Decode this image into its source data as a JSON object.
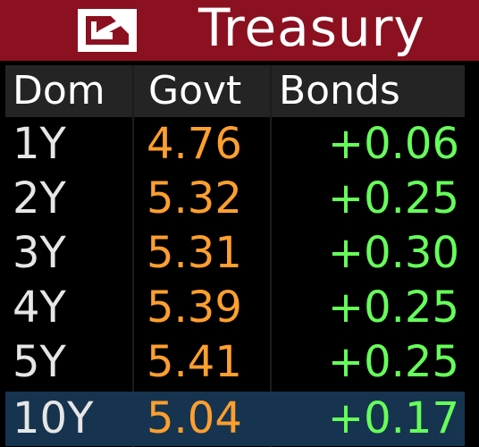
{
  "window": {
    "title": "Treasury",
    "icon": "popout-icon"
  },
  "table": {
    "headers": [
      "Dom",
      "Govt",
      "Bonds"
    ],
    "rows": [
      {
        "tenor": "1Y",
        "yield": "4.76",
        "change": "+0.06"
      },
      {
        "tenor": "2Y",
        "yield": "5.32",
        "change": "+0.25"
      },
      {
        "tenor": "3Y",
        "yield": "5.31",
        "change": "+0.30"
      },
      {
        "tenor": "4Y",
        "yield": "5.39",
        "change": "+0.25"
      },
      {
        "tenor": "5Y",
        "yield": "5.41",
        "change": "+0.25"
      },
      {
        "tenor": "10Y",
        "yield": "5.04",
        "change": "+0.17"
      }
    ],
    "selected_row": 5
  },
  "colors": {
    "titlebar": "#8b1120",
    "tenor": "#e6e6e6",
    "yield": "#ff9f2e",
    "change_positive": "#66ff5a",
    "selected_row": "#16344f"
  }
}
